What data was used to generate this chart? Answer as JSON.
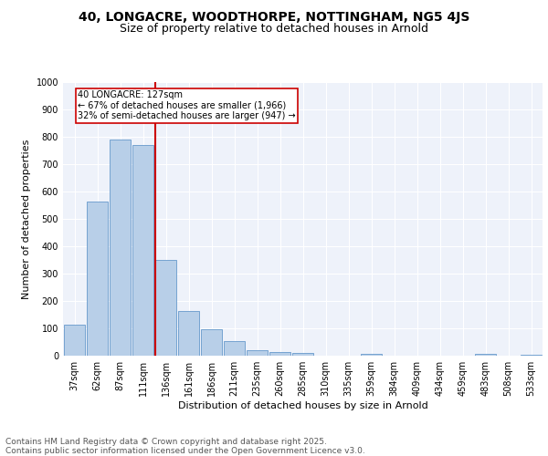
{
  "title1": "40, LONGACRE, WOODTHORPE, NOTTINGHAM, NG5 4JS",
  "title2": "Size of property relative to detached houses in Arnold",
  "xlabel": "Distribution of detached houses by size in Arnold",
  "ylabel": "Number of detached properties",
  "categories": [
    "37sqm",
    "62sqm",
    "87sqm",
    "111sqm",
    "136sqm",
    "161sqm",
    "186sqm",
    "211sqm",
    "235sqm",
    "260sqm",
    "285sqm",
    "310sqm",
    "335sqm",
    "359sqm",
    "384sqm",
    "409sqm",
    "434sqm",
    "459sqm",
    "483sqm",
    "508sqm",
    "533sqm"
  ],
  "values": [
    113,
    563,
    790,
    770,
    350,
    165,
    97,
    52,
    20,
    13,
    10,
    0,
    0,
    7,
    0,
    0,
    0,
    0,
    8,
    0,
    3
  ],
  "bar_color": "#b8cfe8",
  "bar_edge_color": "#6699cc",
  "vline_bin_index": 4,
  "vline_color": "#cc0000",
  "annotation_text": "40 LONGACRE: 127sqm\n← 67% of detached houses are smaller (1,966)\n32% of semi-detached houses are larger (947) →",
  "annotation_box_color": "#cc0000",
  "annotation_text_color": "#000000",
  "background_color": "#eef2fa",
  "grid_color": "#ffffff",
  "ylim": [
    0,
    1000
  ],
  "yticks": [
    0,
    100,
    200,
    300,
    400,
    500,
    600,
    700,
    800,
    900,
    1000
  ],
  "footer_text": "Contains HM Land Registry data © Crown copyright and database right 2025.\nContains public sector information licensed under the Open Government Licence v3.0.",
  "title_fontsize": 10,
  "subtitle_fontsize": 9,
  "axis_label_fontsize": 8,
  "tick_fontsize": 7,
  "footer_fontsize": 6.5
}
